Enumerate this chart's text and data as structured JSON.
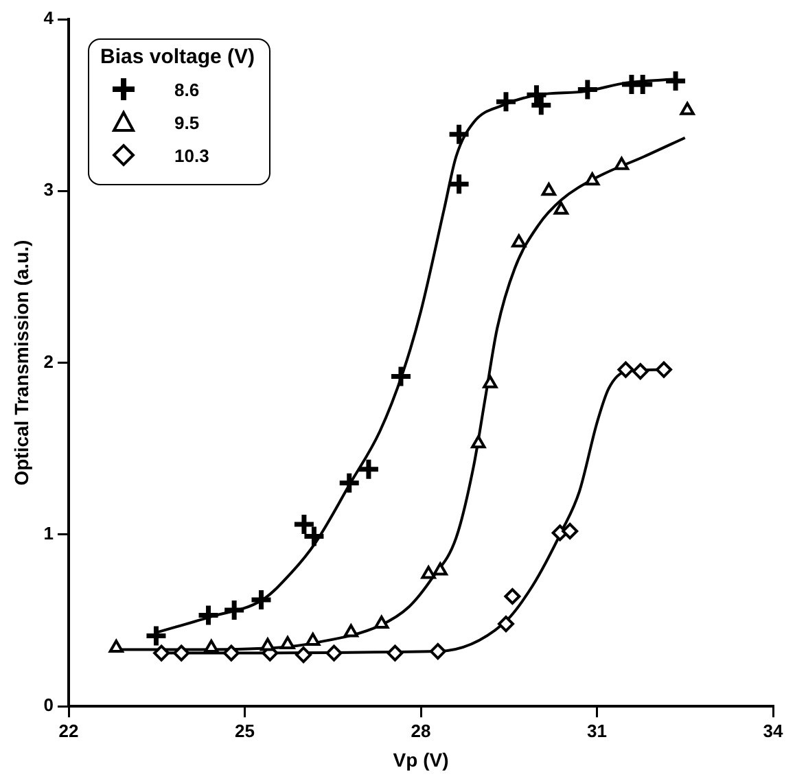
{
  "chart_data": {
    "type": "scatter",
    "xlabel": "Vp (V)",
    "ylabel": "Optical Transmission (a.u.)",
    "legend_title": "Bias voltage (V)",
    "legend": "top left",
    "grid": false,
    "xlim": [
      22,
      34
    ],
    "xticks": [
      22,
      25,
      28,
      31,
      34
    ],
    "ylim": [
      0,
      4
    ],
    "yticks": [
      0,
      1,
      2,
      3,
      4
    ],
    "series": [
      {
        "name": "8.6",
        "color": "#000000",
        "marker": "cross",
        "x": [
          23.49,
          24.38,
          24.82,
          25.28,
          26.01,
          26.18,
          26.78,
          27.11,
          27.66,
          28.65,
          28.65,
          29.45,
          29.97,
          30.05,
          30.84,
          31.59,
          31.78,
          32.34
        ],
        "values": [
          0.41,
          0.53,
          0.56,
          0.62,
          1.06,
          0.99,
          1.3,
          1.38,
          1.92,
          3.04,
          3.33,
          3.52,
          3.56,
          3.5,
          3.59,
          3.62,
          3.62,
          3.64
        ]
      },
      {
        "name": "9.5",
        "color": "#000000",
        "marker": "triangle",
        "x": [
          22.81,
          24.43,
          25.39,
          25.73,
          26.16,
          26.81,
          27.33,
          28.13,
          28.33,
          28.98,
          29.18,
          29.67,
          30.18,
          30.39,
          30.92,
          31.42,
          32.54
        ],
        "values": [
          0.34,
          0.34,
          0.35,
          0.36,
          0.38,
          0.43,
          0.48,
          0.77,
          0.79,
          1.53,
          1.88,
          2.7,
          3.0,
          2.89,
          3.06,
          3.15,
          3.47
        ]
      },
      {
        "name": "10.3",
        "color": "#000000",
        "marker": "diamond",
        "x": [
          23.58,
          23.92,
          24.77,
          25.43,
          26.0,
          26.52,
          27.56,
          28.29,
          29.45,
          29.56,
          30.37,
          30.54,
          31.49,
          31.74,
          32.14
        ],
        "values": [
          0.31,
          0.31,
          0.31,
          0.31,
          0.3,
          0.31,
          0.31,
          0.32,
          0.48,
          0.64,
          1.01,
          1.02,
          1.96,
          1.95,
          1.96
        ]
      },
      {
        "type": "line",
        "color": "#000000",
        "marker": "none",
        "x": [
          23.5,
          24.4,
          25.3,
          25.8,
          26.2,
          26.8,
          27.3,
          27.7,
          28.0,
          28.4,
          28.6,
          28.9,
          29.4,
          30.0,
          30.8,
          31.5,
          32.3
        ],
        "values": [
          0.43,
          0.52,
          0.62,
          0.78,
          0.95,
          1.3,
          1.6,
          1.95,
          2.3,
          2.9,
          3.2,
          3.4,
          3.5,
          3.56,
          3.58,
          3.63,
          3.65
        ]
      },
      {
        "type": "line",
        "color": "#000000",
        "marker": "none",
        "x": [
          22.8,
          24.0,
          25.5,
          26.2,
          27.3,
          27.8,
          28.2,
          28.6,
          28.9,
          29.1,
          29.3,
          29.6,
          30.0,
          30.4,
          31.0,
          31.8,
          32.5
        ],
        "values": [
          0.33,
          0.33,
          0.34,
          0.37,
          0.47,
          0.58,
          0.75,
          0.98,
          1.4,
          1.8,
          2.2,
          2.55,
          2.8,
          2.95,
          3.08,
          3.2,
          3.31
        ]
      },
      {
        "type": "line",
        "color": "#000000",
        "marker": "none",
        "x": [
          23.5,
          28.3,
          29.4,
          29.9,
          30.4,
          30.7,
          31.0,
          31.2,
          31.5,
          32.1
        ],
        "values": [
          0.31,
          0.32,
          0.48,
          0.7,
          1.02,
          1.25,
          1.65,
          1.85,
          1.95,
          1.96
        ]
      }
    ]
  }
}
